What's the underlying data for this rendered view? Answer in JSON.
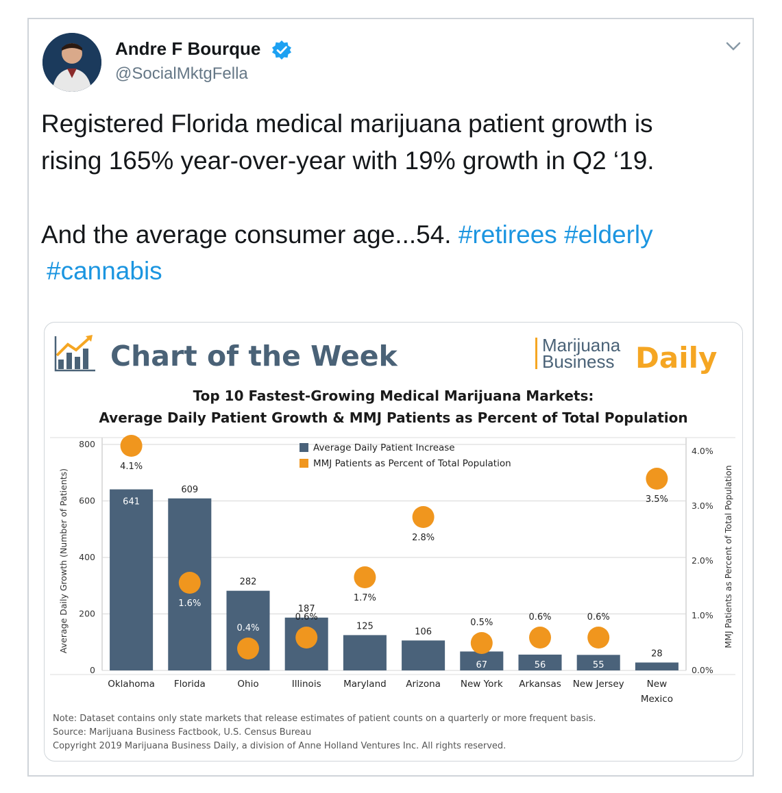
{
  "tweet": {
    "author_name": "Andre F Bourque",
    "author_handle": "@SocialMktgFella",
    "text_lines": [
      "Registered Florida medical marijuana patient growth is",
      "rising 165% year-over-year with 19% growth in Q2 ‘19."
    ],
    "text_line3": "And the average consumer age...54.",
    "hashtags": [
      "#retirees",
      "#elderly",
      "#cannabis"
    ]
  },
  "icons": {
    "verified": "verified-badge-icon",
    "caret": "chevron-down-icon",
    "chart_logo": "bar-chart-trend-icon"
  },
  "colors": {
    "bar": "#4a627a",
    "dot": "#f0961e",
    "header_text": "#4a6277",
    "daily": "#f5a623",
    "hashtag": "#1b95e0"
  },
  "chart_header": {
    "title": "Chart of the Week",
    "brand_line1": "Marijuana",
    "brand_line2": "Business",
    "brand_daily": "Daily"
  },
  "chart_data": {
    "type": "bar",
    "title": "Top 10 Fastest-Growing Medical Marijuana Markets:",
    "subtitle": "Average Daily Patient Growth & MMJ Patients as Percent of Total Population",
    "ylabel": "Average Daily Growth (Number of Patients)",
    "y2label": "MMJ Patients as Percent of Total Population",
    "ylim": [
      0,
      800
    ],
    "y2lim": [
      0,
      4.0
    ],
    "yticks": [
      "0",
      "200",
      "400",
      "600",
      "800"
    ],
    "y2ticks": [
      "0.0%",
      "1.0%",
      "2.0%",
      "3.0%",
      "4.0%"
    ],
    "categories": [
      "Oklahoma",
      "Florida",
      "Ohio",
      "Illinois",
      "Maryland",
      "Arizona",
      "New York",
      "Arkansas",
      "New Jersey",
      "New Mexico"
    ],
    "series": [
      {
        "name": "Average Daily Patient Increase",
        "type": "bar",
        "values": [
          641,
          609,
          282,
          187,
          125,
          106,
          67,
          56,
          55,
          28
        ],
        "labels": [
          "641",
          "609",
          "282",
          "187",
          "125",
          "106",
          "67",
          "56",
          "55",
          "28"
        ]
      },
      {
        "name": "MMJ Patients as Percent of Total Population",
        "type": "scatter",
        "axis": "right",
        "values": [
          4.1,
          1.6,
          0.4,
          0.6,
          1.7,
          2.8,
          0.5,
          0.6,
          0.6,
          3.5
        ],
        "labels": [
          "4.1%",
          "1.6%",
          "0.4%",
          "0.6%",
          "1.7%",
          "2.8%",
          "0.5%",
          "0.6%",
          "0.6%",
          "3.5%"
        ]
      }
    ],
    "legend": "top-center",
    "grid": true,
    "notes": [
      "Note: Dataset contains only state markets that release estimates of patient counts on a quarterly or more frequent basis.",
      "Source: Marijuana Business Factbook, U.S. Census Bureau",
      "Copyright 2019 Marijuana Business Daily, a division of Anne Holland Ventures Inc. All rights reserved."
    ]
  }
}
